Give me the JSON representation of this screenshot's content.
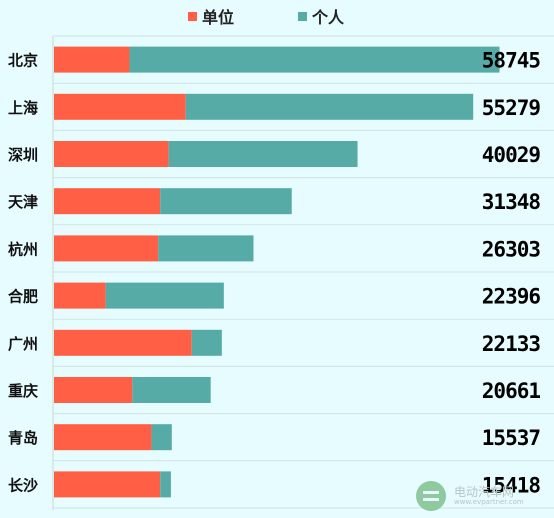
{
  "chart_data": {
    "type": "bar",
    "orientation": "horizontal",
    "stacked": true,
    "categories": [
      "北京",
      "上海",
      "深圳",
      "天津",
      "杭州",
      "合肥",
      "广州",
      "重庆",
      "青岛",
      "长沙"
    ],
    "series": [
      {
        "name": "单位",
        "color": "#fe5f45",
        "values": [
          9952,
          17370,
          15124,
          14001,
          13735,
          6812,
          18161,
          10320,
          12849,
          14001
        ]
      },
      {
        "name": "个人",
        "color": "#56aba7",
        "values": [
          48793,
          37909,
          24905,
          17347,
          12568,
          15584,
          3972,
          10341,
          2688,
          1417
        ]
      }
    ],
    "totals": [
      "58745",
      "55279",
      "40029",
      "31348",
      "26303",
      "22396",
      "22133",
      "20661",
      "15537",
      "15418"
    ],
    "xlim": [
      0,
      60000
    ],
    "grid": true,
    "legend": "top-center"
  },
  "watermark": {
    "name": "电动汽车网",
    "url": "www.evpartner.com"
  }
}
